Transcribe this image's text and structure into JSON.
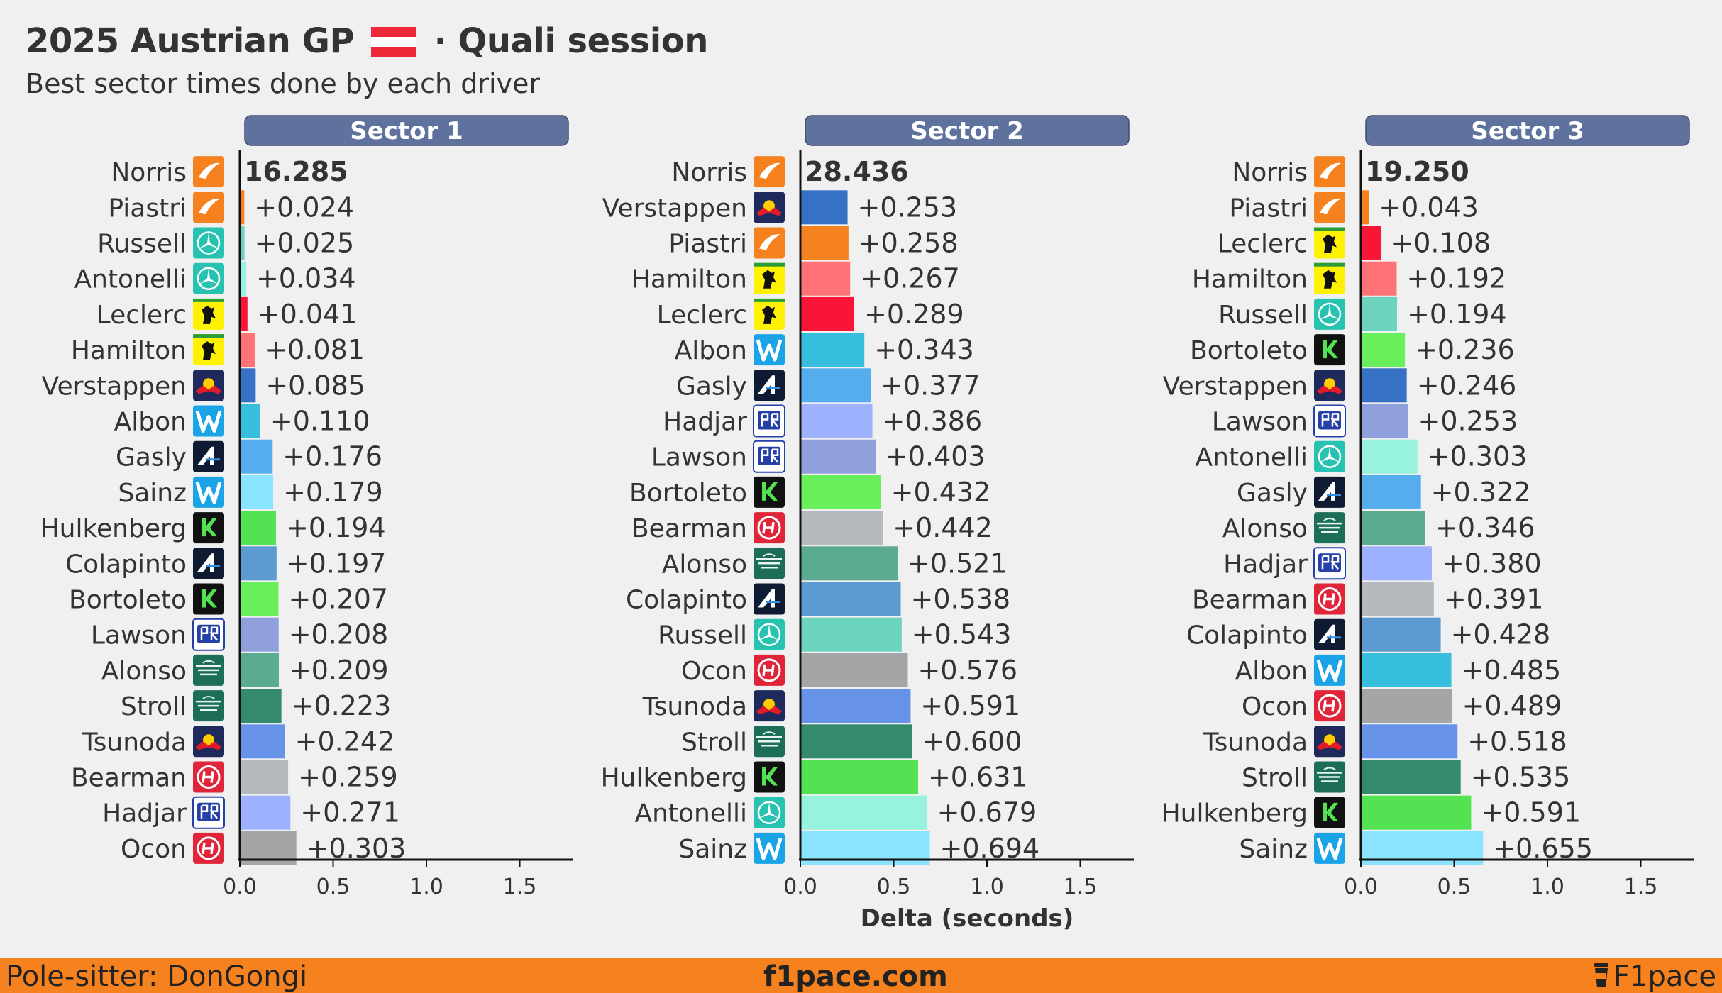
{
  "header": {
    "title_left": "2025 Austrian GP",
    "title_right": "· Quali session",
    "subtitle": "Best sector times done by each driver"
  },
  "footer": {
    "left": "Pole-sitter: DonGongi",
    "center": "f1pace.com",
    "right": "F1pace"
  },
  "colors": {
    "background": "#f0f0f0",
    "sector_header": "#5f729e",
    "footer": "#f5821f"
  },
  "icons": {
    "flag": "austria-flag-icon",
    "footer_logo": "cup-icon",
    "teams": {
      "mclaren": "mclaren-logo-icon",
      "mercedes": "mercedes-logo-icon",
      "ferrari": "ferrari-logo-icon",
      "redbull": "redbull-logo-icon",
      "williams": "williams-logo-icon",
      "alpine": "alpine-logo-icon",
      "sauber": "sauber-logo-icon",
      "racingbulls": "racing-bulls-logo-icon",
      "astonmartin": "aston-martin-logo-icon",
      "haas": "haas-logo-icon"
    }
  },
  "chart_data": [
    {
      "type": "bar",
      "orientation": "horizontal",
      "title": "Sector 1",
      "best_time": "16.285",
      "xlabel": "",
      "xlim": [
        0,
        1.75
      ],
      "xticks": [
        "0.0",
        "0.5",
        "1.0",
        "1.5"
      ],
      "drivers": [
        {
          "name": "Norris",
          "team": "mclaren",
          "delta": 0,
          "label": "16.285",
          "color": "#f5821f"
        },
        {
          "name": "Piastri",
          "team": "mclaren",
          "delta": 0.024,
          "label": "+0.024",
          "color": "#f5821f"
        },
        {
          "name": "Russell",
          "team": "mercedes",
          "delta": 0.025,
          "label": "+0.025",
          "color": "#6cd3bf"
        },
        {
          "name": "Antonelli",
          "team": "mercedes",
          "delta": 0.034,
          "label": "+0.034",
          "color": "#97f2de"
        },
        {
          "name": "Leclerc",
          "team": "ferrari",
          "delta": 0.041,
          "label": "+0.041",
          "color": "#f91536"
        },
        {
          "name": "Hamilton",
          "team": "ferrari",
          "delta": 0.081,
          "label": "+0.081",
          "color": "#ff7377"
        },
        {
          "name": "Verstappen",
          "team": "redbull",
          "delta": 0.085,
          "label": "+0.085",
          "color": "#3671c6"
        },
        {
          "name": "Albon",
          "team": "williams",
          "delta": 0.11,
          "label": "+0.110",
          "color": "#37bedd"
        },
        {
          "name": "Gasly",
          "team": "alpine",
          "delta": 0.176,
          "label": "+0.176",
          "color": "#56adee"
        },
        {
          "name": "Sainz",
          "team": "williams",
          "delta": 0.179,
          "label": "+0.179",
          "color": "#8ae3ff"
        },
        {
          "name": "Hulkenberg",
          "team": "sauber",
          "delta": 0.194,
          "label": "+0.194",
          "color": "#52e252"
        },
        {
          "name": "Colapinto",
          "team": "alpine",
          "delta": 0.197,
          "label": "+0.197",
          "color": "#5b9bd1"
        },
        {
          "name": "Bortoleto",
          "team": "sauber",
          "delta": 0.207,
          "label": "+0.207",
          "color": "#68ef5b"
        },
        {
          "name": "Lawson",
          "team": "racingbulls",
          "delta": 0.208,
          "label": "+0.208",
          "color": "#8fa0dd"
        },
        {
          "name": "Alonso",
          "team": "astonmartin",
          "delta": 0.209,
          "label": "+0.209",
          "color": "#5aab8f"
        },
        {
          "name": "Stroll",
          "team": "astonmartin",
          "delta": 0.223,
          "label": "+0.223",
          "color": "#338a6c"
        },
        {
          "name": "Tsunoda",
          "team": "redbull",
          "delta": 0.242,
          "label": "+0.242",
          "color": "#6692e8"
        },
        {
          "name": "Bearman",
          "team": "haas",
          "delta": 0.259,
          "label": "+0.259",
          "color": "#b6babd"
        },
        {
          "name": "Hadjar",
          "team": "racingbulls",
          "delta": 0.271,
          "label": "+0.271",
          "color": "#9eb1ff"
        },
        {
          "name": "Ocon",
          "team": "haas",
          "delta": 0.303,
          "label": "+0.303",
          "color": "#a5a5a8"
        }
      ]
    },
    {
      "type": "bar",
      "orientation": "horizontal",
      "title": "Sector 2",
      "best_time": "28.436",
      "xlabel": "Delta (seconds)",
      "xlim": [
        0,
        1.75
      ],
      "xticks": [
        "0.0",
        "0.5",
        "1.0",
        "1.5"
      ],
      "drivers": [
        {
          "name": "Norris",
          "team": "mclaren",
          "delta": 0,
          "label": "28.436",
          "color": "#f5821f"
        },
        {
          "name": "Verstappen",
          "team": "redbull",
          "delta": 0.253,
          "label": "+0.253",
          "color": "#3671c6"
        },
        {
          "name": "Piastri",
          "team": "mclaren",
          "delta": 0.258,
          "label": "+0.258",
          "color": "#f5821f"
        },
        {
          "name": "Hamilton",
          "team": "ferrari",
          "delta": 0.267,
          "label": "+0.267",
          "color": "#ff7377"
        },
        {
          "name": "Leclerc",
          "team": "ferrari",
          "delta": 0.289,
          "label": "+0.289",
          "color": "#f91536"
        },
        {
          "name": "Albon",
          "team": "williams",
          "delta": 0.343,
          "label": "+0.343",
          "color": "#37bedd"
        },
        {
          "name": "Gasly",
          "team": "alpine",
          "delta": 0.377,
          "label": "+0.377",
          "color": "#56adee"
        },
        {
          "name": "Hadjar",
          "team": "racingbulls",
          "delta": 0.386,
          "label": "+0.386",
          "color": "#9eb1ff"
        },
        {
          "name": "Lawson",
          "team": "racingbulls",
          "delta": 0.403,
          "label": "+0.403",
          "color": "#8fa0dd"
        },
        {
          "name": "Bortoleto",
          "team": "sauber",
          "delta": 0.432,
          "label": "+0.432",
          "color": "#68ef5b"
        },
        {
          "name": "Bearman",
          "team": "haas",
          "delta": 0.442,
          "label": "+0.442",
          "color": "#b6babd"
        },
        {
          "name": "Alonso",
          "team": "astonmartin",
          "delta": 0.521,
          "label": "+0.521",
          "color": "#5aab8f"
        },
        {
          "name": "Colapinto",
          "team": "alpine",
          "delta": 0.538,
          "label": "+0.538",
          "color": "#5b9bd1"
        },
        {
          "name": "Russell",
          "team": "mercedes",
          "delta": 0.543,
          "label": "+0.543",
          "color": "#6cd3bf"
        },
        {
          "name": "Ocon",
          "team": "haas",
          "delta": 0.576,
          "label": "+0.576",
          "color": "#a5a5a8"
        },
        {
          "name": "Tsunoda",
          "team": "redbull",
          "delta": 0.591,
          "label": "+0.591",
          "color": "#6692e8"
        },
        {
          "name": "Stroll",
          "team": "astonmartin",
          "delta": 0.6,
          "label": "+0.600",
          "color": "#338a6c"
        },
        {
          "name": "Hulkenberg",
          "team": "sauber",
          "delta": 0.631,
          "label": "+0.631",
          "color": "#52e252"
        },
        {
          "name": "Antonelli",
          "team": "mercedes",
          "delta": 0.679,
          "label": "+0.679",
          "color": "#97f2de"
        },
        {
          "name": "Sainz",
          "team": "williams",
          "delta": 0.694,
          "label": "+0.694",
          "color": "#8ae3ff"
        }
      ]
    },
    {
      "type": "bar",
      "orientation": "horizontal",
      "title": "Sector 3",
      "best_time": "19.250",
      "xlabel": "",
      "xlim": [
        0,
        1.75
      ],
      "xticks": [
        "0.0",
        "0.5",
        "1.0",
        "1.5"
      ],
      "drivers": [
        {
          "name": "Norris",
          "team": "mclaren",
          "delta": 0,
          "label": "19.250",
          "color": "#f5821f"
        },
        {
          "name": "Piastri",
          "team": "mclaren",
          "delta": 0.043,
          "label": "+0.043",
          "color": "#f5821f"
        },
        {
          "name": "Leclerc",
          "team": "ferrari",
          "delta": 0.108,
          "label": "+0.108",
          "color": "#f91536"
        },
        {
          "name": "Hamilton",
          "team": "ferrari",
          "delta": 0.192,
          "label": "+0.192",
          "color": "#ff7377"
        },
        {
          "name": "Russell",
          "team": "mercedes",
          "delta": 0.194,
          "label": "+0.194",
          "color": "#6cd3bf"
        },
        {
          "name": "Bortoleto",
          "team": "sauber",
          "delta": 0.236,
          "label": "+0.236",
          "color": "#68ef5b"
        },
        {
          "name": "Verstappen",
          "team": "redbull",
          "delta": 0.246,
          "label": "+0.246",
          "color": "#3671c6"
        },
        {
          "name": "Lawson",
          "team": "racingbulls",
          "delta": 0.253,
          "label": "+0.253",
          "color": "#8fa0dd"
        },
        {
          "name": "Antonelli",
          "team": "mercedes",
          "delta": 0.303,
          "label": "+0.303",
          "color": "#97f2de"
        },
        {
          "name": "Gasly",
          "team": "alpine",
          "delta": 0.322,
          "label": "+0.322",
          "color": "#56adee"
        },
        {
          "name": "Alonso",
          "team": "astonmartin",
          "delta": 0.346,
          "label": "+0.346",
          "color": "#5aab8f"
        },
        {
          "name": "Hadjar",
          "team": "racingbulls",
          "delta": 0.38,
          "label": "+0.380",
          "color": "#9eb1ff"
        },
        {
          "name": "Bearman",
          "team": "haas",
          "delta": 0.391,
          "label": "+0.391",
          "color": "#b6babd"
        },
        {
          "name": "Colapinto",
          "team": "alpine",
          "delta": 0.428,
          "label": "+0.428",
          "color": "#5b9bd1"
        },
        {
          "name": "Albon",
          "team": "williams",
          "delta": 0.485,
          "label": "+0.485",
          "color": "#37bedd"
        },
        {
          "name": "Ocon",
          "team": "haas",
          "delta": 0.489,
          "label": "+0.489",
          "color": "#a5a5a8"
        },
        {
          "name": "Tsunoda",
          "team": "redbull",
          "delta": 0.518,
          "label": "+0.518",
          "color": "#6692e8"
        },
        {
          "name": "Stroll",
          "team": "astonmartin",
          "delta": 0.535,
          "label": "+0.535",
          "color": "#338a6c"
        },
        {
          "name": "Hulkenberg",
          "team": "sauber",
          "delta": 0.591,
          "label": "+0.591",
          "color": "#52e252"
        },
        {
          "name": "Sainz",
          "team": "williams",
          "delta": 0.655,
          "label": "+0.655",
          "color": "#8ae3ff"
        }
      ]
    }
  ]
}
